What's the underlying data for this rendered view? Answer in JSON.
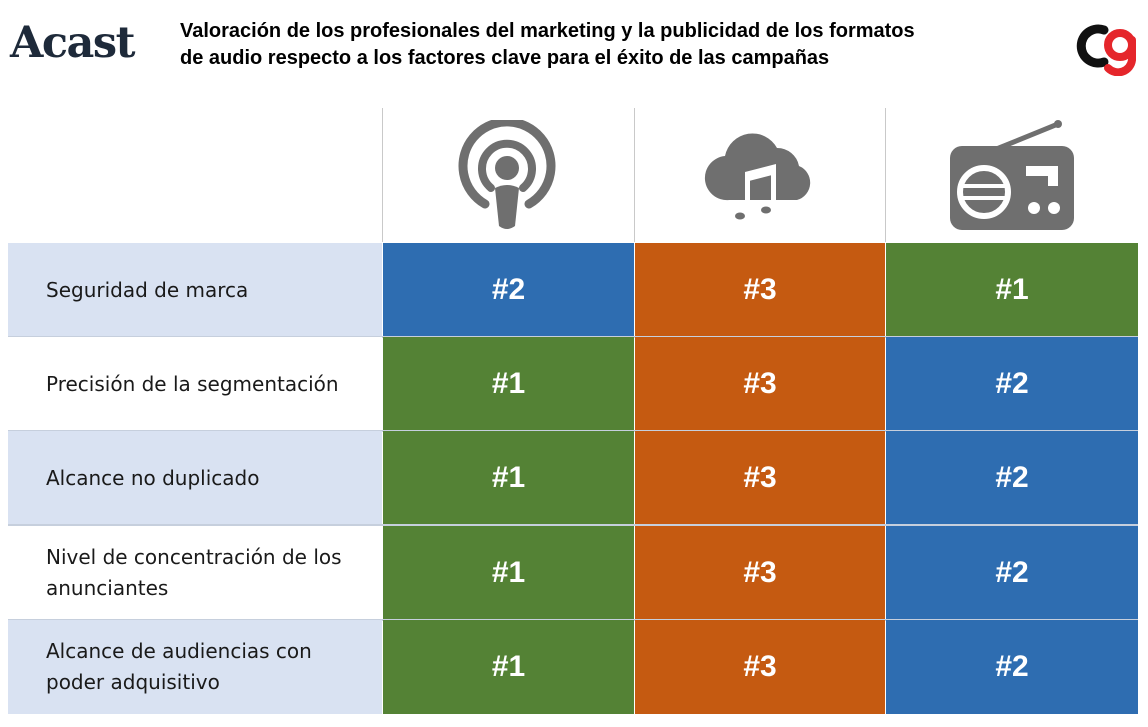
{
  "header": {
    "brand_left": "Acast",
    "title_line1": "Valoración de los profesionales del marketing y la publicidad de los formatos",
    "title_line2": "de audio respecto a los factores clave para el éxito de las campañas"
  },
  "columns": [
    {
      "icon": "podcast-icon"
    },
    {
      "icon": "cloud-music-icon"
    },
    {
      "icon": "radio-icon"
    }
  ],
  "colors": {
    "blue": "#2e6db1",
    "orange": "#c55a11",
    "green": "#548235",
    "label_band": "#d9e2f2",
    "icon_gray": "#6f6f6f",
    "brand_red": "#e5262b"
  },
  "rows": [
    {
      "label": "Seguridad de marca",
      "cells": [
        {
          "text": "#2",
          "color": "blue"
        },
        {
          "text": "#3",
          "color": "orange"
        },
        {
          "text": "#1",
          "color": "green"
        }
      ]
    },
    {
      "label": "Precisión de la segmentación",
      "cells": [
        {
          "text": "#1",
          "color": "green"
        },
        {
          "text": "#3",
          "color": "orange"
        },
        {
          "text": "#2",
          "color": "blue"
        }
      ]
    },
    {
      "label": "Alcance no duplicado",
      "cells": [
        {
          "text": "#1",
          "color": "green"
        },
        {
          "text": "#3",
          "color": "orange"
        },
        {
          "text": "#2",
          "color": "blue"
        }
      ]
    },
    {
      "label": "Nivel de concentración de los anunciantes",
      "cells": [
        {
          "text": "#1",
          "color": "green"
        },
        {
          "text": "#3",
          "color": "orange"
        },
        {
          "text": "#2",
          "color": "blue"
        }
      ]
    },
    {
      "label": "Alcance de audiencias con poder adquisitivo",
      "cells": [
        {
          "text": "#1",
          "color": "green"
        },
        {
          "text": "#3",
          "color": "orange"
        },
        {
          "text": "#2",
          "color": "blue"
        }
      ]
    }
  ]
}
